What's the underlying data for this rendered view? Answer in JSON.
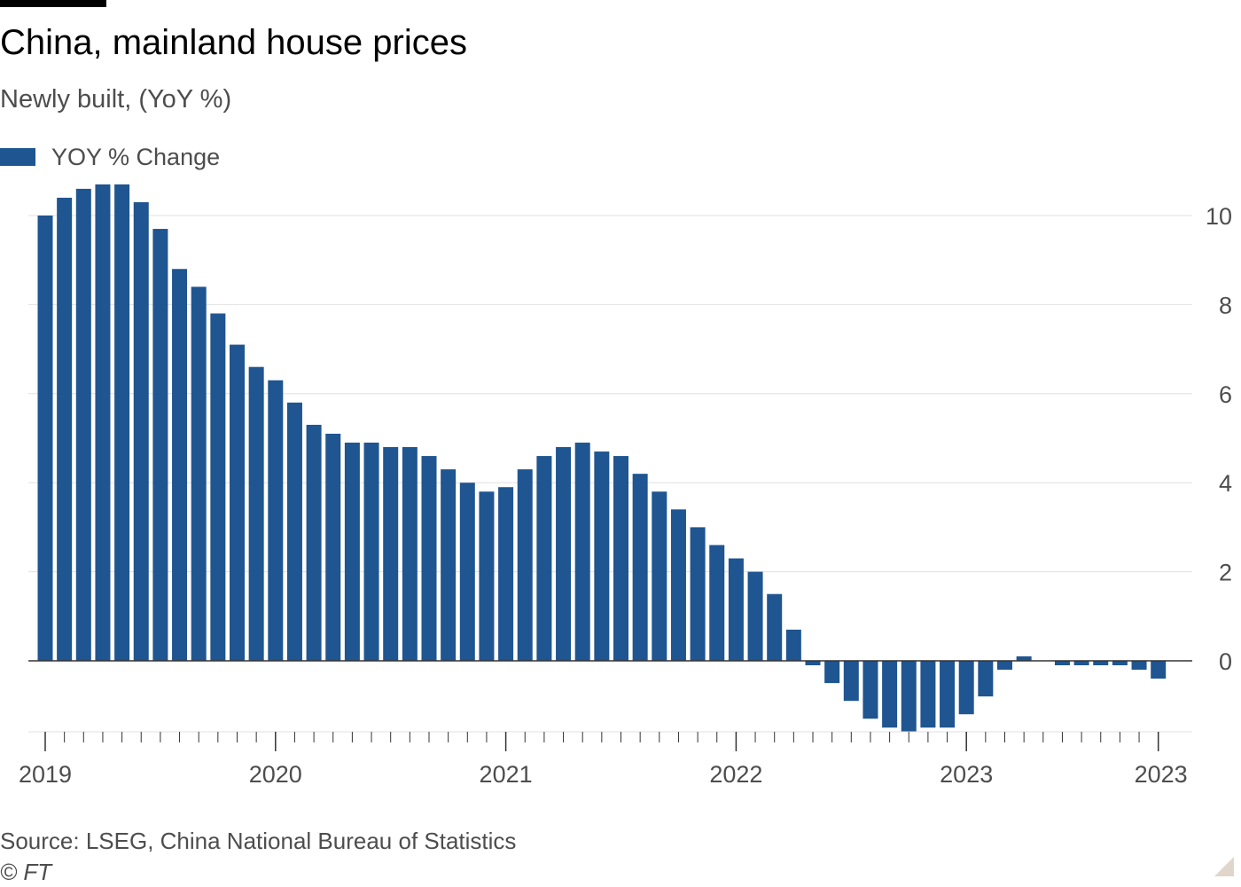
{
  "header": {
    "title": "China, mainland house prices",
    "subtitle": "Newly built, (YoY %)"
  },
  "footer": {
    "source": "Source: LSEG, China National Bureau of Statistics",
    "copyright": "© FT"
  },
  "colors": {
    "bar": "#1f5590",
    "grid": "#e0e0e0",
    "axis": "#333333",
    "tick_text": "#4d4d4d"
  },
  "chart_data": {
    "type": "bar",
    "title": "China, mainland house prices",
    "subtitle": "Newly built, (YoY %)",
    "xlabel": "",
    "ylabel": "",
    "legend": [
      {
        "name": "YOY % Change",
        "position": "top-left"
      }
    ],
    "ylim": [
      -1.6,
      10.8
    ],
    "yticks": [
      0,
      2,
      4,
      6,
      8,
      10
    ],
    "y_axis_side": "right",
    "grid": true,
    "x_tick_labels": [
      "2019",
      "2020",
      "2021",
      "2022",
      "2023",
      "2023"
    ],
    "start_month": "2019-01",
    "series": [
      {
        "name": "YOY % Change",
        "values": [
          10.0,
          10.4,
          10.6,
          10.7,
          10.7,
          10.3,
          9.7,
          8.8,
          8.4,
          7.8,
          7.1,
          6.6,
          6.3,
          5.8,
          5.3,
          5.1,
          4.9,
          4.9,
          4.8,
          4.8,
          4.6,
          4.3,
          4.0,
          3.8,
          3.9,
          4.3,
          4.6,
          4.8,
          4.9,
          4.7,
          4.6,
          4.2,
          3.8,
          3.4,
          3.0,
          2.6,
          2.3,
          2.0,
          1.5,
          0.7,
          -0.1,
          -0.5,
          -0.9,
          -1.3,
          -1.5,
          -1.6,
          -1.5,
          -1.5,
          -1.2,
          -0.8,
          -0.2,
          0.1,
          0.0,
          -0.1,
          -0.1,
          -0.1,
          -0.1,
          -0.2,
          -0.4
        ]
      }
    ]
  }
}
